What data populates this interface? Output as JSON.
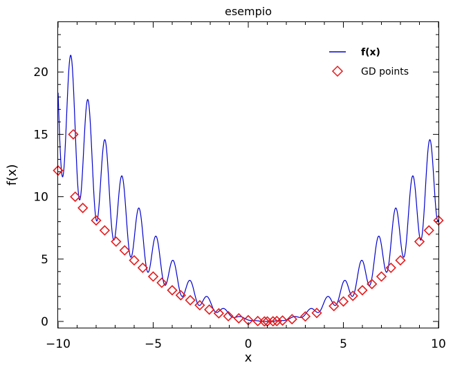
{
  "chart_data": {
    "type": "line",
    "title": "esempio",
    "xlabel": "x",
    "ylabel": "f(x)",
    "xlim": [
      -10,
      10
    ],
    "ylim": [
      -0.5,
      24
    ],
    "xticks": [
      -10,
      -5,
      0,
      5,
      10
    ],
    "xtick_labels": [
      "−10",
      "−5",
      "0",
      "5",
      "10"
    ],
    "yticks": [
      0,
      5,
      10,
      15,
      20
    ],
    "ytick_labels": [
      "0",
      "5",
      "10",
      "15",
      "20"
    ],
    "legend_position": "top-right",
    "colors": {
      "curve": "#0000cc",
      "points": "#e31a1c",
      "axes": "#000000"
    },
    "series": [
      {
        "name": "f(x)",
        "kind": "line",
        "expression": "0.1*(x-1)^2 + 0.1*(x-1)^2*sin(3.5*(x-1))^2",
        "x_range": [
          -10,
          10
        ]
      },
      {
        "name": "GD points",
        "kind": "scatter",
        "marker": "diamond",
        "x": [
          -10.0,
          -9.2,
          -9.1,
          -8.7,
          -8.0,
          -7.55,
          -6.95,
          -6.5,
          -6.0,
          -5.55,
          -5.0,
          -4.55,
          -4.0,
          -3.55,
          -3.05,
          -2.55,
          -2.05,
          -1.55,
          -1.05,
          -0.5,
          0.0,
          0.5,
          0.85,
          1.0,
          1.3,
          1.5,
          1.8,
          2.3,
          3.0,
          3.6,
          4.5,
          5.0,
          5.5,
          6.0,
          6.5,
          7.0,
          7.5,
          8.0,
          9.0,
          9.5,
          10.0
        ],
        "y": [
          12.1,
          15.0,
          10.0,
          9.1,
          8.1,
          7.3,
          6.4,
          5.7,
          4.9,
          4.3,
          3.6,
          3.1,
          2.5,
          2.1,
          1.7,
          1.3,
          0.95,
          0.65,
          0.42,
          0.25,
          0.1,
          0.03,
          0.0,
          0.0,
          0.01,
          0.03,
          0.07,
          0.18,
          0.4,
          0.68,
          1.23,
          1.6,
          2.05,
          2.5,
          3.0,
          3.6,
          4.3,
          4.9,
          6.4,
          7.3,
          8.1
        ]
      }
    ]
  }
}
